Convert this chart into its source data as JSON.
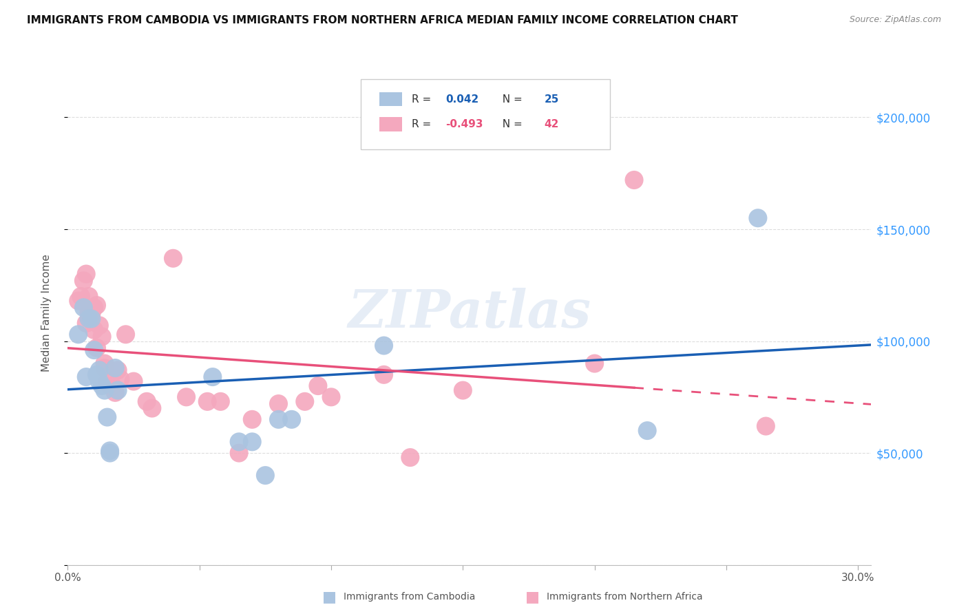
{
  "title": "IMMIGRANTS FROM CAMBODIA VS IMMIGRANTS FROM NORTHERN AFRICA MEDIAN FAMILY INCOME CORRELATION CHART",
  "source": "Source: ZipAtlas.com",
  "ylabel": "Median Family Income",
  "xlim": [
    0.0,
    0.305
  ],
  "ylim": [
    0,
    225000
  ],
  "ytick_vals": [
    0,
    50000,
    100000,
    150000,
    200000
  ],
  "ytick_labels": [
    "",
    "$50,000",
    "$100,000",
    "$150,000",
    "$200,000"
  ],
  "xtick_vals": [
    0.0,
    0.05,
    0.1,
    0.15,
    0.2,
    0.25,
    0.3
  ],
  "xtick_labels": [
    "0.0%",
    "",
    "",
    "",
    "",
    "",
    "30.0%"
  ],
  "cambodia_color": "#aac4e0",
  "northern_africa_color": "#f4a8be",
  "cambodia_line_color": "#1a5fb4",
  "northern_africa_line_color": "#e8507a",
  "cambodia_R": 0.042,
  "cambodia_N": 25,
  "northern_africa_R": -0.493,
  "northern_africa_N": 42,
  "cambodia_x": [
    0.004,
    0.006,
    0.007,
    0.008,
    0.009,
    0.01,
    0.011,
    0.012,
    0.012,
    0.013,
    0.014,
    0.015,
    0.016,
    0.016,
    0.018,
    0.019,
    0.055,
    0.065,
    0.07,
    0.075,
    0.08,
    0.085,
    0.12,
    0.22,
    0.262
  ],
  "cambodia_y": [
    103000,
    115000,
    84000,
    110000,
    110000,
    96000,
    85000,
    87000,
    82000,
    80000,
    78000,
    66000,
    51000,
    50000,
    88000,
    78000,
    84000,
    55000,
    55000,
    40000,
    65000,
    65000,
    98000,
    60000,
    155000
  ],
  "northern_africa_x": [
    0.004,
    0.005,
    0.006,
    0.007,
    0.007,
    0.008,
    0.008,
    0.009,
    0.01,
    0.01,
    0.011,
    0.011,
    0.012,
    0.013,
    0.014,
    0.014,
    0.015,
    0.016,
    0.017,
    0.018,
    0.019,
    0.02,
    0.022,
    0.025,
    0.03,
    0.032,
    0.04,
    0.045,
    0.053,
    0.058,
    0.065,
    0.07,
    0.08,
    0.09,
    0.095,
    0.1,
    0.12,
    0.13,
    0.15,
    0.2,
    0.215,
    0.265
  ],
  "northern_africa_y": [
    118000,
    120000,
    127000,
    130000,
    108000,
    120000,
    113000,
    112000,
    115000,
    105000,
    116000,
    97000,
    107000,
    102000,
    88000,
    90000,
    82000,
    80000,
    80000,
    77000,
    87000,
    83000,
    103000,
    82000,
    73000,
    70000,
    137000,
    75000,
    73000,
    73000,
    50000,
    65000,
    72000,
    73000,
    80000,
    75000,
    85000,
    48000,
    78000,
    90000,
    172000,
    62000
  ],
  "watermark": "ZIPatlas",
  "background_color": "#ffffff",
  "grid_color": "#dddddd"
}
